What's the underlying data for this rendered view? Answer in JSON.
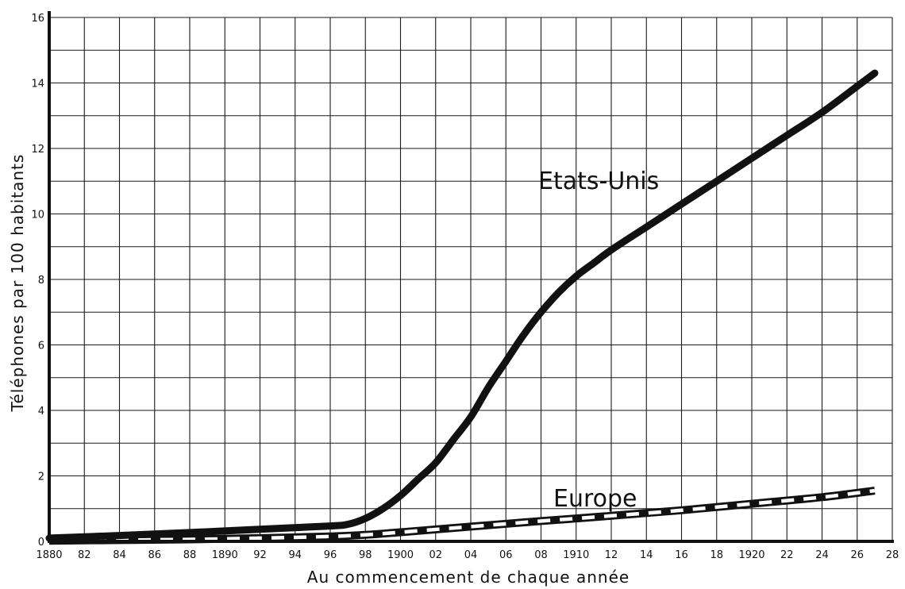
{
  "chart_data": {
    "type": "line",
    "title": "",
    "xlabel": "Au commencement de chaque année",
    "ylabel": "Téléphones par 100 habitants",
    "xlim": [
      1880,
      1928
    ],
    "ylim": [
      0,
      16
    ],
    "grid": true,
    "x_ticks": [
      1880,
      1882,
      1884,
      1886,
      1888,
      1890,
      1892,
      1894,
      1896,
      1898,
      1900,
      1902,
      1904,
      1906,
      1908,
      1910,
      1912,
      1914,
      1916,
      1918,
      1920,
      1922,
      1924,
      1926,
      1928
    ],
    "x_tick_labels": [
      "1880",
      "82",
      "84",
      "86",
      "88",
      "1890",
      "92",
      "94",
      "96",
      "98",
      "1900",
      "02",
      "04",
      "06",
      "08",
      "1910",
      "12",
      "14",
      "16",
      "18",
      "1920",
      "22",
      "24",
      "26",
      "28"
    ],
    "y_ticks": [
      0,
      2,
      4,
      6,
      8,
      10,
      12,
      14,
      16
    ],
    "y_tick_labels": [
      "0",
      "2",
      "4",
      "6",
      "8",
      "10",
      "12",
      "14",
      "16"
    ],
    "series": [
      {
        "name": "Etats-Unis",
        "style": "solid",
        "color": "#111111",
        "x": [
          1880,
          1884,
          1888,
          1892,
          1896,
          1897,
          1898,
          1899,
          1900,
          1901,
          1902,
          1903,
          1904,
          1905,
          1906,
          1907,
          1908,
          1909,
          1910,
          1911,
          1912,
          1914,
          1916,
          1918,
          1920,
          1922,
          1924,
          1926,
          1927
        ],
        "y": [
          0.1,
          0.18,
          0.27,
          0.37,
          0.47,
          0.52,
          0.7,
          1.0,
          1.4,
          1.9,
          2.4,
          3.1,
          3.8,
          4.7,
          5.5,
          6.3,
          7.0,
          7.6,
          8.1,
          8.5,
          8.9,
          9.6,
          10.3,
          11.0,
          11.7,
          12.4,
          13.1,
          13.9,
          14.3
        ]
      },
      {
        "name": "Europe",
        "style": "dashed",
        "color": "#111111",
        "x": [
          1880,
          1884,
          1888,
          1892,
          1896,
          1898,
          1900,
          1904,
          1908,
          1912,
          1916,
          1920,
          1924,
          1927
        ],
        "y": [
          0.02,
          0.04,
          0.06,
          0.1,
          0.15,
          0.2,
          0.28,
          0.45,
          0.62,
          0.78,
          0.95,
          1.15,
          1.35,
          1.55
        ]
      }
    ]
  }
}
